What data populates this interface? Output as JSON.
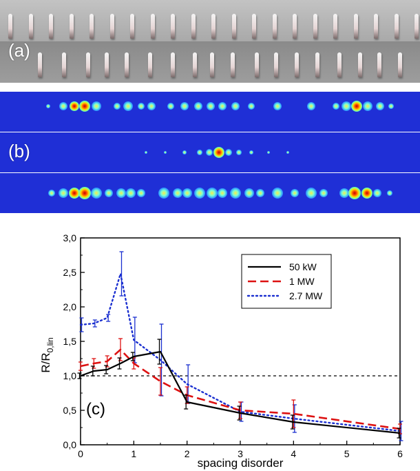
{
  "panels": {
    "a_label": "(a)",
    "b_label": "(b)",
    "c_label": "(c)"
  },
  "colors": {
    "beam_background": "#1f2fd6",
    "series_50kW": "#000000",
    "series_1MW": "#dd1111",
    "series_2_7MW": "#1a2fd0"
  },
  "chart_data": {
    "type": "line",
    "xlabel": "spacing disorder",
    "ylabel": "R/R",
    "ylabel_sub": "0,lin",
    "xlim": [
      0,
      6
    ],
    "ylim": [
      0,
      3.0
    ],
    "x_ticks": [
      "0",
      "1",
      "2",
      "3",
      "4",
      "5",
      "6"
    ],
    "y_ticks": [
      "0,0",
      "0,5",
      "1,0",
      "1,5",
      "2,0",
      "2,5",
      "3,0"
    ],
    "reference_line": 1.0,
    "legend_position": "top-right",
    "series": [
      {
        "name": "50 kW",
        "style": "solid",
        "x": [
          0,
          0.25,
          0.5,
          0.75,
          1.0,
          1.5,
          2.0,
          3.0,
          4.0,
          6.0
        ],
        "y": [
          1.0,
          1.07,
          1.09,
          1.18,
          1.28,
          1.35,
          0.62,
          0.46,
          0.33,
          0.17
        ],
        "err": [
          0.04,
          0.07,
          0.06,
          0.08,
          0.06,
          0.18,
          0.1,
          0.1,
          0.1,
          0.07
        ]
      },
      {
        "name": "1 MW",
        "style": "dashed",
        "x": [
          0,
          0.25,
          0.5,
          0.75,
          1.0,
          1.5,
          2.0,
          3.0,
          4.0,
          6.0
        ],
        "y": [
          1.14,
          1.18,
          1.21,
          1.38,
          1.18,
          0.92,
          0.72,
          0.5,
          0.45,
          0.23
        ],
        "err": [
          0.06,
          0.07,
          0.08,
          0.16,
          0.08,
          0.2,
          0.12,
          0.12,
          0.2,
          0.07
        ]
      },
      {
        "name": "2.7 MW",
        "style": "dotted",
        "x": [
          0,
          0.25,
          0.5,
          0.75,
          1.0,
          1.5,
          2.0,
          3.0,
          4.0,
          6.0
        ],
        "y": [
          1.74,
          1.76,
          1.84,
          2.48,
          1.52,
          1.23,
          0.88,
          0.48,
          0.38,
          0.2
        ],
        "err": [
          0.1,
          0.05,
          0.05,
          0.32,
          0.33,
          0.52,
          0.28,
          0.14,
          0.2,
          0.14
        ]
      }
    ]
  }
}
